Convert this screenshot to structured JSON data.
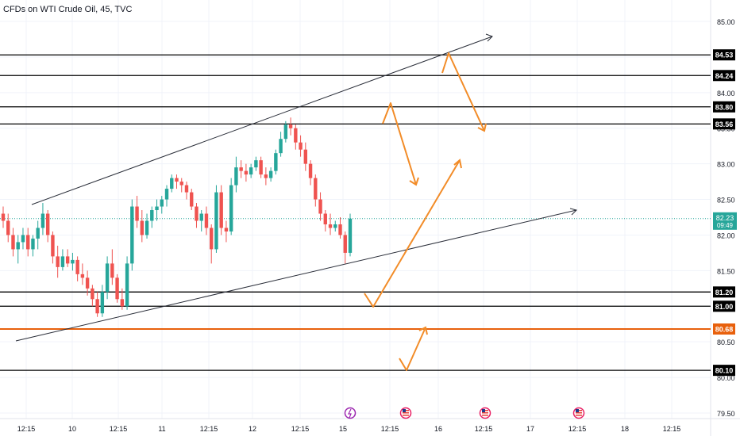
{
  "title": "CFDs on WTI Crude Oil, 45, TVC",
  "chart_data": {
    "type": "candlestick",
    "symbol": "CFDs on WTI Crude Oil",
    "interval": "45",
    "exchange": "TVC",
    "ylim": [
      79.5,
      85.1
    ],
    "y_ticks": [
      "85.00",
      "84.50",
      "84.00",
      "83.50",
      "83.00",
      "82.50",
      "82.00",
      "81.50",
      "81.00",
      "80.50",
      "80.00",
      "79.50"
    ],
    "x_ticks": [
      "12:15",
      "10",
      "12:15",
      "11",
      "12:15",
      "12",
      "12:15",
      "15",
      "12:15",
      "16",
      "12:15",
      "17",
      "12:15",
      "18",
      "12:15"
    ],
    "price_levels": [
      {
        "label": "84.53",
        "value": 84.53,
        "color": "#000000"
      },
      {
        "label": "84.24",
        "value": 84.24,
        "color": "#000000"
      },
      {
        "label": "83.80",
        "value": 83.8,
        "color": "#000000"
      },
      {
        "label": "83.56",
        "value": 83.56,
        "color": "#000000"
      },
      {
        "label": "81.20",
        "value": 81.2,
        "color": "#000000"
      },
      {
        "label": "81.00",
        "value": 81.0,
        "color": "#000000"
      },
      {
        "label": "80.68",
        "value": 80.68,
        "color": "#e8600c"
      },
      {
        "label": "80.10",
        "value": 80.1,
        "color": "#000000"
      }
    ],
    "last_price": {
      "value": 82.23,
      "label": "82.23",
      "countdown": "09:49",
      "color": "#26a69a"
    },
    "candles": [
      [
        82.3,
        82.4,
        82.1,
        82.2
      ],
      [
        82.2,
        82.3,
        81.9,
        82.0
      ],
      [
        82.0,
        82.1,
        81.7,
        81.8
      ],
      [
        81.8,
        82.0,
        81.6,
        81.9
      ],
      [
        81.9,
        82.1,
        81.8,
        82.0
      ],
      [
        82.0,
        82.1,
        81.7,
        81.8
      ],
      [
        81.8,
        82.0,
        81.7,
        81.95
      ],
      [
        81.95,
        82.2,
        81.8,
        82.1
      ],
      [
        82.1,
        82.45,
        82.0,
        82.3
      ],
      [
        82.3,
        82.35,
        81.9,
        82.0
      ],
      [
        82.0,
        82.05,
        81.6,
        81.7
      ],
      [
        81.7,
        81.85,
        81.4,
        81.55
      ],
      [
        81.55,
        81.8,
        81.5,
        81.7
      ],
      [
        81.7,
        81.8,
        81.55,
        81.6
      ],
      [
        81.6,
        81.75,
        81.5,
        81.65
      ],
      [
        81.65,
        81.7,
        81.35,
        81.45
      ],
      [
        81.45,
        81.6,
        81.3,
        81.4
      ],
      [
        81.4,
        81.5,
        81.15,
        81.25
      ],
      [
        81.25,
        81.3,
        81.0,
        81.1
      ],
      [
        81.1,
        81.2,
        80.85,
        80.9
      ],
      [
        80.9,
        81.3,
        80.85,
        81.2
      ],
      [
        81.2,
        81.7,
        81.1,
        81.6
      ],
      [
        81.6,
        81.8,
        81.3,
        81.4
      ],
      [
        81.4,
        81.45,
        81.05,
        81.1
      ],
      [
        81.1,
        81.25,
        80.95,
        81.0
      ],
      [
        81.0,
        81.7,
        80.95,
        81.6
      ],
      [
        81.6,
        82.5,
        81.5,
        82.4
      ],
      [
        82.4,
        82.55,
        82.1,
        82.2
      ],
      [
        82.2,
        82.35,
        81.9,
        82.0
      ],
      [
        82.0,
        82.3,
        81.95,
        82.2
      ],
      [
        82.2,
        82.4,
        82.1,
        82.35
      ],
      [
        82.35,
        82.5,
        82.2,
        82.4
      ],
      [
        82.4,
        82.55,
        82.3,
        82.5
      ],
      [
        82.5,
        82.7,
        82.4,
        82.65
      ],
      [
        82.65,
        82.85,
        82.6,
        82.8
      ],
      [
        82.8,
        82.85,
        82.65,
        82.75
      ],
      [
        82.75,
        82.8,
        82.6,
        82.7
      ],
      [
        82.7,
        82.75,
        82.5,
        82.6
      ],
      [
        82.6,
        82.65,
        82.35,
        82.4
      ],
      [
        82.4,
        82.45,
        82.1,
        82.2
      ],
      [
        82.2,
        82.35,
        82.05,
        82.3
      ],
      [
        82.3,
        82.4,
        82.0,
        82.1
      ],
      [
        82.1,
        82.15,
        81.6,
        81.8
      ],
      [
        81.8,
        82.7,
        81.75,
        82.6
      ],
      [
        82.6,
        82.7,
        82.0,
        82.1
      ],
      [
        82.1,
        82.2,
        81.9,
        82.05
      ],
      [
        82.05,
        82.8,
        82.0,
        82.7
      ],
      [
        82.7,
        83.1,
        82.6,
        82.95
      ],
      [
        82.95,
        83.05,
        82.8,
        82.9
      ],
      [
        82.9,
        83.0,
        82.75,
        82.85
      ],
      [
        82.85,
        83.0,
        82.8,
        82.95
      ],
      [
        82.95,
        83.1,
        82.9,
        83.05
      ],
      [
        83.05,
        83.1,
        82.8,
        82.85
      ],
      [
        82.85,
        82.95,
        82.7,
        82.8
      ],
      [
        82.8,
        82.95,
        82.75,
        82.9
      ],
      [
        82.9,
        83.2,
        82.85,
        83.15
      ],
      [
        83.15,
        83.45,
        83.1,
        83.35
      ],
      [
        83.35,
        83.6,
        83.3,
        83.55
      ],
      [
        83.55,
        83.65,
        83.4,
        83.5
      ],
      [
        83.5,
        83.55,
        83.2,
        83.3
      ],
      [
        83.3,
        83.4,
        83.1,
        83.2
      ],
      [
        83.2,
        83.3,
        82.9,
        83.0
      ],
      [
        83.0,
        83.05,
        82.7,
        82.8
      ],
      [
        82.8,
        82.85,
        82.4,
        82.5
      ],
      [
        82.5,
        82.6,
        82.2,
        82.3
      ],
      [
        82.3,
        82.35,
        82.05,
        82.15
      ],
      [
        82.15,
        82.3,
        82.0,
        82.1
      ],
      [
        82.1,
        82.2,
        82.05,
        82.15
      ],
      [
        82.15,
        82.25,
        81.95,
        82.0
      ],
      [
        82.0,
        82.05,
        81.6,
        81.75
      ],
      [
        81.75,
        82.3,
        81.7,
        82.23
      ]
    ]
  }
}
